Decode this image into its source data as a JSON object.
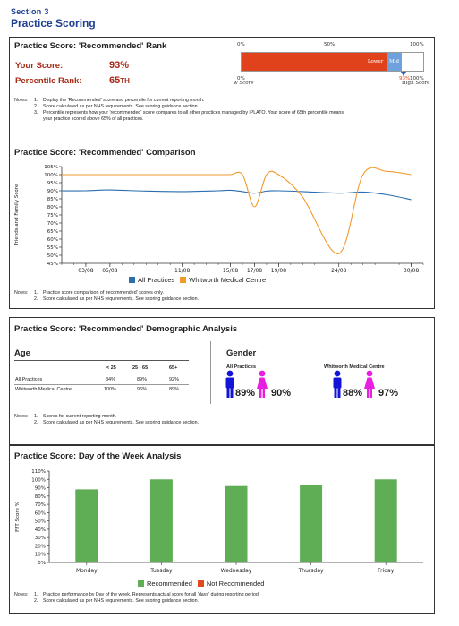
{
  "section": {
    "label": "Section 3",
    "title": "Practice Scoring"
  },
  "rank": {
    "title": "Practice Score: 'Recommended' Rank",
    "your_score_label": "Your Score:",
    "your_score_value": "93%",
    "percentile_label": "Percentile Rank:",
    "percentile_value": "65th",
    "bar_ticks": [
      "0%",
      "50%",
      "100%"
    ],
    "bar_segments": [
      {
        "name": "Lower",
        "fraction": 0.8,
        "color": "#e0421c"
      },
      {
        "name": "Mid",
        "fraction": 0.08,
        "color": "#6fa1dd"
      },
      {
        "name": "",
        "fraction": 0.12,
        "color": "#ffffff"
      }
    ],
    "low_label_top": "0%",
    "low_label_bottom": "w Score",
    "marker_label_value": "93%",
    "high_label_top": "100%",
    "high_label_bottom": "High Score",
    "marker_color": "#2b58b8",
    "notes_label": "Notes:",
    "notes": [
      "Display the 'Recommended' score and percentile for current reporting month.",
      "Score calculated as per NHS requirements. See scoring guidance section.",
      "Percentile represents how your 'recommended' score compares to all other practices managed by iPLATO. Your score of 65th percentile means",
      "your practice scored above 65% of all practices."
    ]
  },
  "comparison": {
    "title": "Practice Score: 'Recommended' Comparison",
    "notes_label": "Notes:",
    "notes": [
      "Practice score comparison of 'recommended' scores only.",
      "Score calculated as per NHS requirements. See scoring guidance section."
    ]
  },
  "demographic": {
    "title": "Practice Score: 'Recommended' Demographic Analysis",
    "age_heading": "Age",
    "age_columns": [
      "< 25",
      "25 - 65",
      "65+"
    ],
    "age_rows": [
      {
        "name": "All Practices",
        "values": [
          "84%",
          "89%",
          "92%"
        ]
      },
      {
        "name": "Whitworth Medical Centre",
        "values": [
          "100%",
          "96%",
          "89%"
        ]
      }
    ],
    "gender_heading": "Gender",
    "gender_groups": [
      {
        "name": "All Practices",
        "male": "89%",
        "female": "90%"
      },
      {
        "name": "Whitworth Medical Centre",
        "male": "88%",
        "female": "97%"
      }
    ],
    "male_color": "#1414d6",
    "female_color": "#e81ee0",
    "notes_label": "Notes:",
    "notes": [
      "Scores for current reporting month.",
      "Score calculated as per NHS requirements. See scoring guidance section."
    ]
  },
  "dow": {
    "title": "Practice Score: Day of the Week Analysis",
    "notes_label": "Notes:",
    "notes": [
      "Practice performance by Day of the week. Represents actual score for all 'days' during reporting period.",
      "Score calculated as per NHS requirements. See scoring guidance section."
    ]
  },
  "chart_data": [
    {
      "type": "line",
      "ylabel": "Friends and Family Score",
      "ylim": [
        45,
        105
      ],
      "yticks": [
        "105%",
        "100%",
        "95%",
        "90%",
        "85%",
        "80%",
        "75%",
        "70%",
        "65%",
        "60%",
        "55%",
        "50%",
        "45%"
      ],
      "x_range": [
        "2015-03-01",
        "2015-08-31"
      ],
      "x_ticks": [
        {
          "label": "03/08",
          "date": "2015-03-08"
        },
        {
          "label": "05/08",
          "date": "2015-05-08"
        },
        {
          "label": "11/08",
          "date": "2015-11-08"
        },
        {
          "label": "15/08",
          "date": "2015-15-08"
        },
        {
          "label": "17/08",
          "date": "2015-17-08"
        },
        {
          "label": "19/08",
          "date": "2015-19-08"
        },
        {
          "label": "24/08",
          "date": "2015-24-08"
        },
        {
          "label": "30/08",
          "date": "2015-30-08"
        }
      ],
      "x": [
        1,
        3,
        5,
        8,
        11,
        14,
        15,
        16,
        17,
        18,
        19,
        21,
        24,
        26,
        28,
        30
      ],
      "series": [
        {
          "name": "All Practices",
          "color": "#2a6db0",
          "values": [
            90,
            90,
            90.5,
            89.8,
            89.5,
            90,
            90.3,
            89.5,
            88.5,
            89.8,
            90,
            89.5,
            88.5,
            89.2,
            87.5,
            84.5
          ]
        },
        {
          "name": "Whitworth Medical Centre",
          "color": "#f29a2e",
          "values": [
            100,
            100,
            100,
            100,
            100,
            100,
            100,
            100,
            80,
            100,
            100,
            86,
            51,
            100,
            102,
            100
          ]
        }
      ],
      "legend_position": "bottom"
    },
    {
      "type": "bar",
      "ylabel": "FFT Score %",
      "ylim": [
        0,
        110
      ],
      "yticks": [
        "110%",
        "100%",
        "90%",
        "80%",
        "70%",
        "60%",
        "50%",
        "40%",
        "30%",
        "20%",
        "10%",
        "0%"
      ],
      "categories": [
        "Monday",
        "Tuesday",
        "Wednesday",
        "Thursday",
        "Friday"
      ],
      "series": [
        {
          "name": "Recommended",
          "color": "#5fae55",
          "values": [
            88,
            100,
            92,
            93,
            100
          ]
        },
        {
          "name": "Not Recommended",
          "color": "#e04a1e",
          "values": [
            0,
            0,
            0,
            0,
            0
          ]
        }
      ],
      "legend_position": "bottom"
    }
  ]
}
